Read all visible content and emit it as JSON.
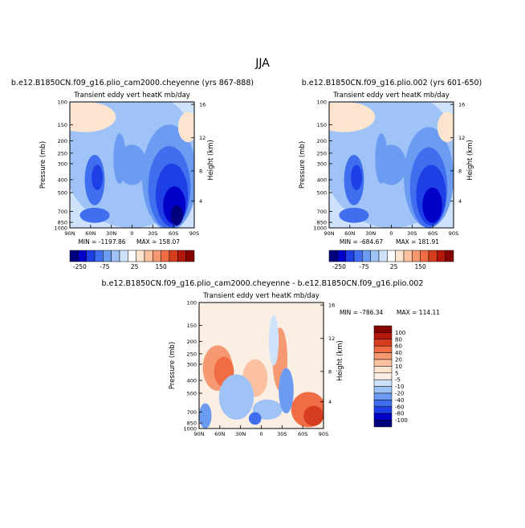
{
  "figure": {
    "title": "JJA"
  },
  "colors": {
    "base_scale": [
      "#00007f",
      "#0000c8",
      "#1f3fe6",
      "#3f6fee",
      "#6b9cf2",
      "#9fc3f7",
      "#cfe2fb",
      "#ffffff",
      "#fde4cf",
      "#fbc1a0",
      "#f69972",
      "#ef6c45",
      "#d63d1f",
      "#b5170b",
      "#870000"
    ],
    "diff_scale": [
      "#00007f",
      "#0000c8",
      "#1f3fe6",
      "#3f6fee",
      "#6b9cf2",
      "#9fc3f7",
      "#cfe2fb",
      "#fbeee3",
      "#fde4cf",
      "#fbc1a0",
      "#f69972",
      "#ef6c45",
      "#d63d1f",
      "#b5170b",
      "#870000"
    ]
  },
  "chart_data": [
    {
      "type": "heatmap",
      "title": "b.e12.B1850CN.f09_g16.plio_cam2000.cheyenne (yrs 867-888)",
      "subtitle": "Transient eddy vert heatK mb/day",
      "xlabel": "",
      "ylabel": "Pressure (mb)",
      "y2label": "Height (km)",
      "x_ticks": [
        "90N",
        "60N",
        "30N",
        "0",
        "30S",
        "60S",
        "90S"
      ],
      "y_ticks": [
        "100",
        "150",
        "200",
        "250",
        "300",
        "400",
        "500",
        "700",
        "850",
        "1000"
      ],
      "y2_ticks": [
        "16",
        "12",
        "8",
        "4"
      ],
      "min_label": "MIN = -1197.86",
      "max_label": "MAX = 158.07",
      "colorbar_labels": [
        "-250",
        "-75",
        "25",
        "150"
      ]
    },
    {
      "type": "heatmap",
      "title": "b.e12.B1850CN.f09_g16.plio.002 (yrs 601-650)",
      "subtitle": "Transient eddy vert heatK mb/day",
      "xlabel": "",
      "ylabel": "Pressure (mb)",
      "y2label": "Height (km)",
      "x_ticks": [
        "90N",
        "60N",
        "30N",
        "0",
        "30S",
        "60S",
        "90S"
      ],
      "y_ticks": [
        "100",
        "150",
        "200",
        "250",
        "300",
        "400",
        "500",
        "700",
        "850",
        "1000"
      ],
      "y2_ticks": [
        "16",
        "12",
        "8",
        "4"
      ],
      "min_label": "MIN = -684.67",
      "max_label": "MAX = 181.91",
      "colorbar_labels": [
        "-250",
        "-75",
        "25",
        "150"
      ]
    },
    {
      "type": "heatmap",
      "title": "b.e12.B1850CN.f09_g16.plio_cam2000.cheyenne - b.e12.B1850CN.f09_g16.plio.002",
      "subtitle": "Transient eddy vert heatK mb/day",
      "xlabel": "",
      "ylabel": "Pressure (mb)",
      "y2label": "Height (km)",
      "x_ticks": [
        "90N",
        "60N",
        "30N",
        "0",
        "30S",
        "60S",
        "90S"
      ],
      "y_ticks": [
        "100",
        "150",
        "200",
        "250",
        "300",
        "400",
        "500",
        "700",
        "850",
        "1000"
      ],
      "y2_ticks": [
        "16",
        "12",
        "8",
        "4"
      ],
      "min_label": "MIN = -786.34",
      "max_label": "MAX = 114.11",
      "colorbar_labels": [
        "100",
        "80",
        "60",
        "40",
        "20",
        "10",
        "5",
        "-5",
        "-10",
        "-20",
        "-40",
        "-60",
        "-80",
        "-100"
      ]
    }
  ]
}
